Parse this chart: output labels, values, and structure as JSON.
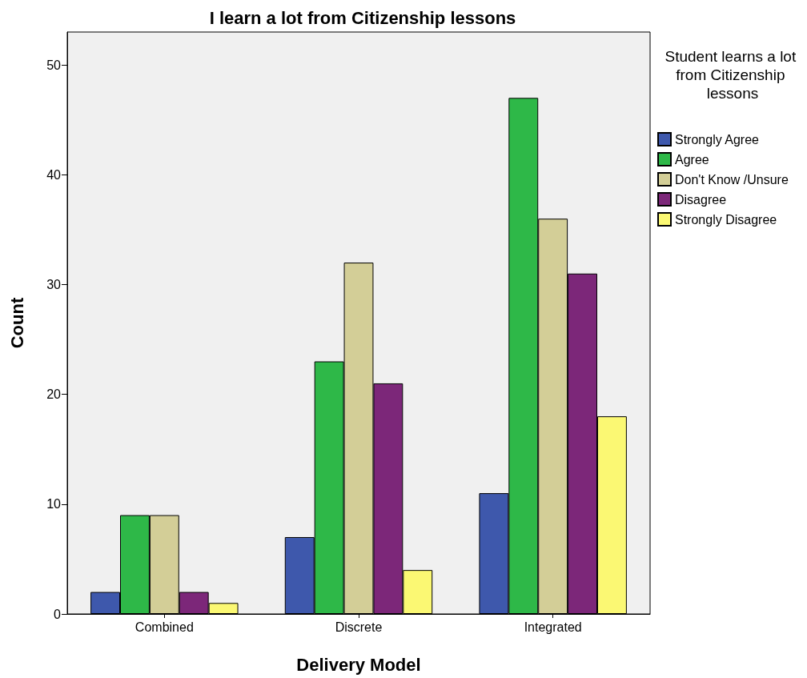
{
  "chart_data": {
    "type": "bar",
    "title": "I learn a lot from Citizenship lessons",
    "xlabel": "Delivery Model",
    "ylabel": "Count",
    "legend_title": "Student learns a lot from Citizenship lessons",
    "categories": [
      "Combined",
      "Discrete",
      "Integrated"
    ],
    "series": [
      {
        "name": "Strongly Agree",
        "color": "#3e58ac",
        "values": [
          2,
          7,
          11
        ]
      },
      {
        "name": "Agree",
        "color": "#2eb848",
        "values": [
          9,
          23,
          47
        ]
      },
      {
        "name": "Don't Know /Unsure",
        "color": "#d3ce97",
        "values": [
          9,
          32,
          36
        ]
      },
      {
        "name": "Disagree",
        "color": "#7c2779",
        "values": [
          2,
          21,
          31
        ]
      },
      {
        "name": "Strongly Disagree",
        "color": "#fbf873",
        "values": [
          1,
          4,
          18
        ]
      }
    ],
    "ylim": [
      0,
      53
    ],
    "yticks": [
      0,
      10,
      20,
      30,
      40,
      50
    ],
    "grid": false,
    "legend": "top right"
  }
}
